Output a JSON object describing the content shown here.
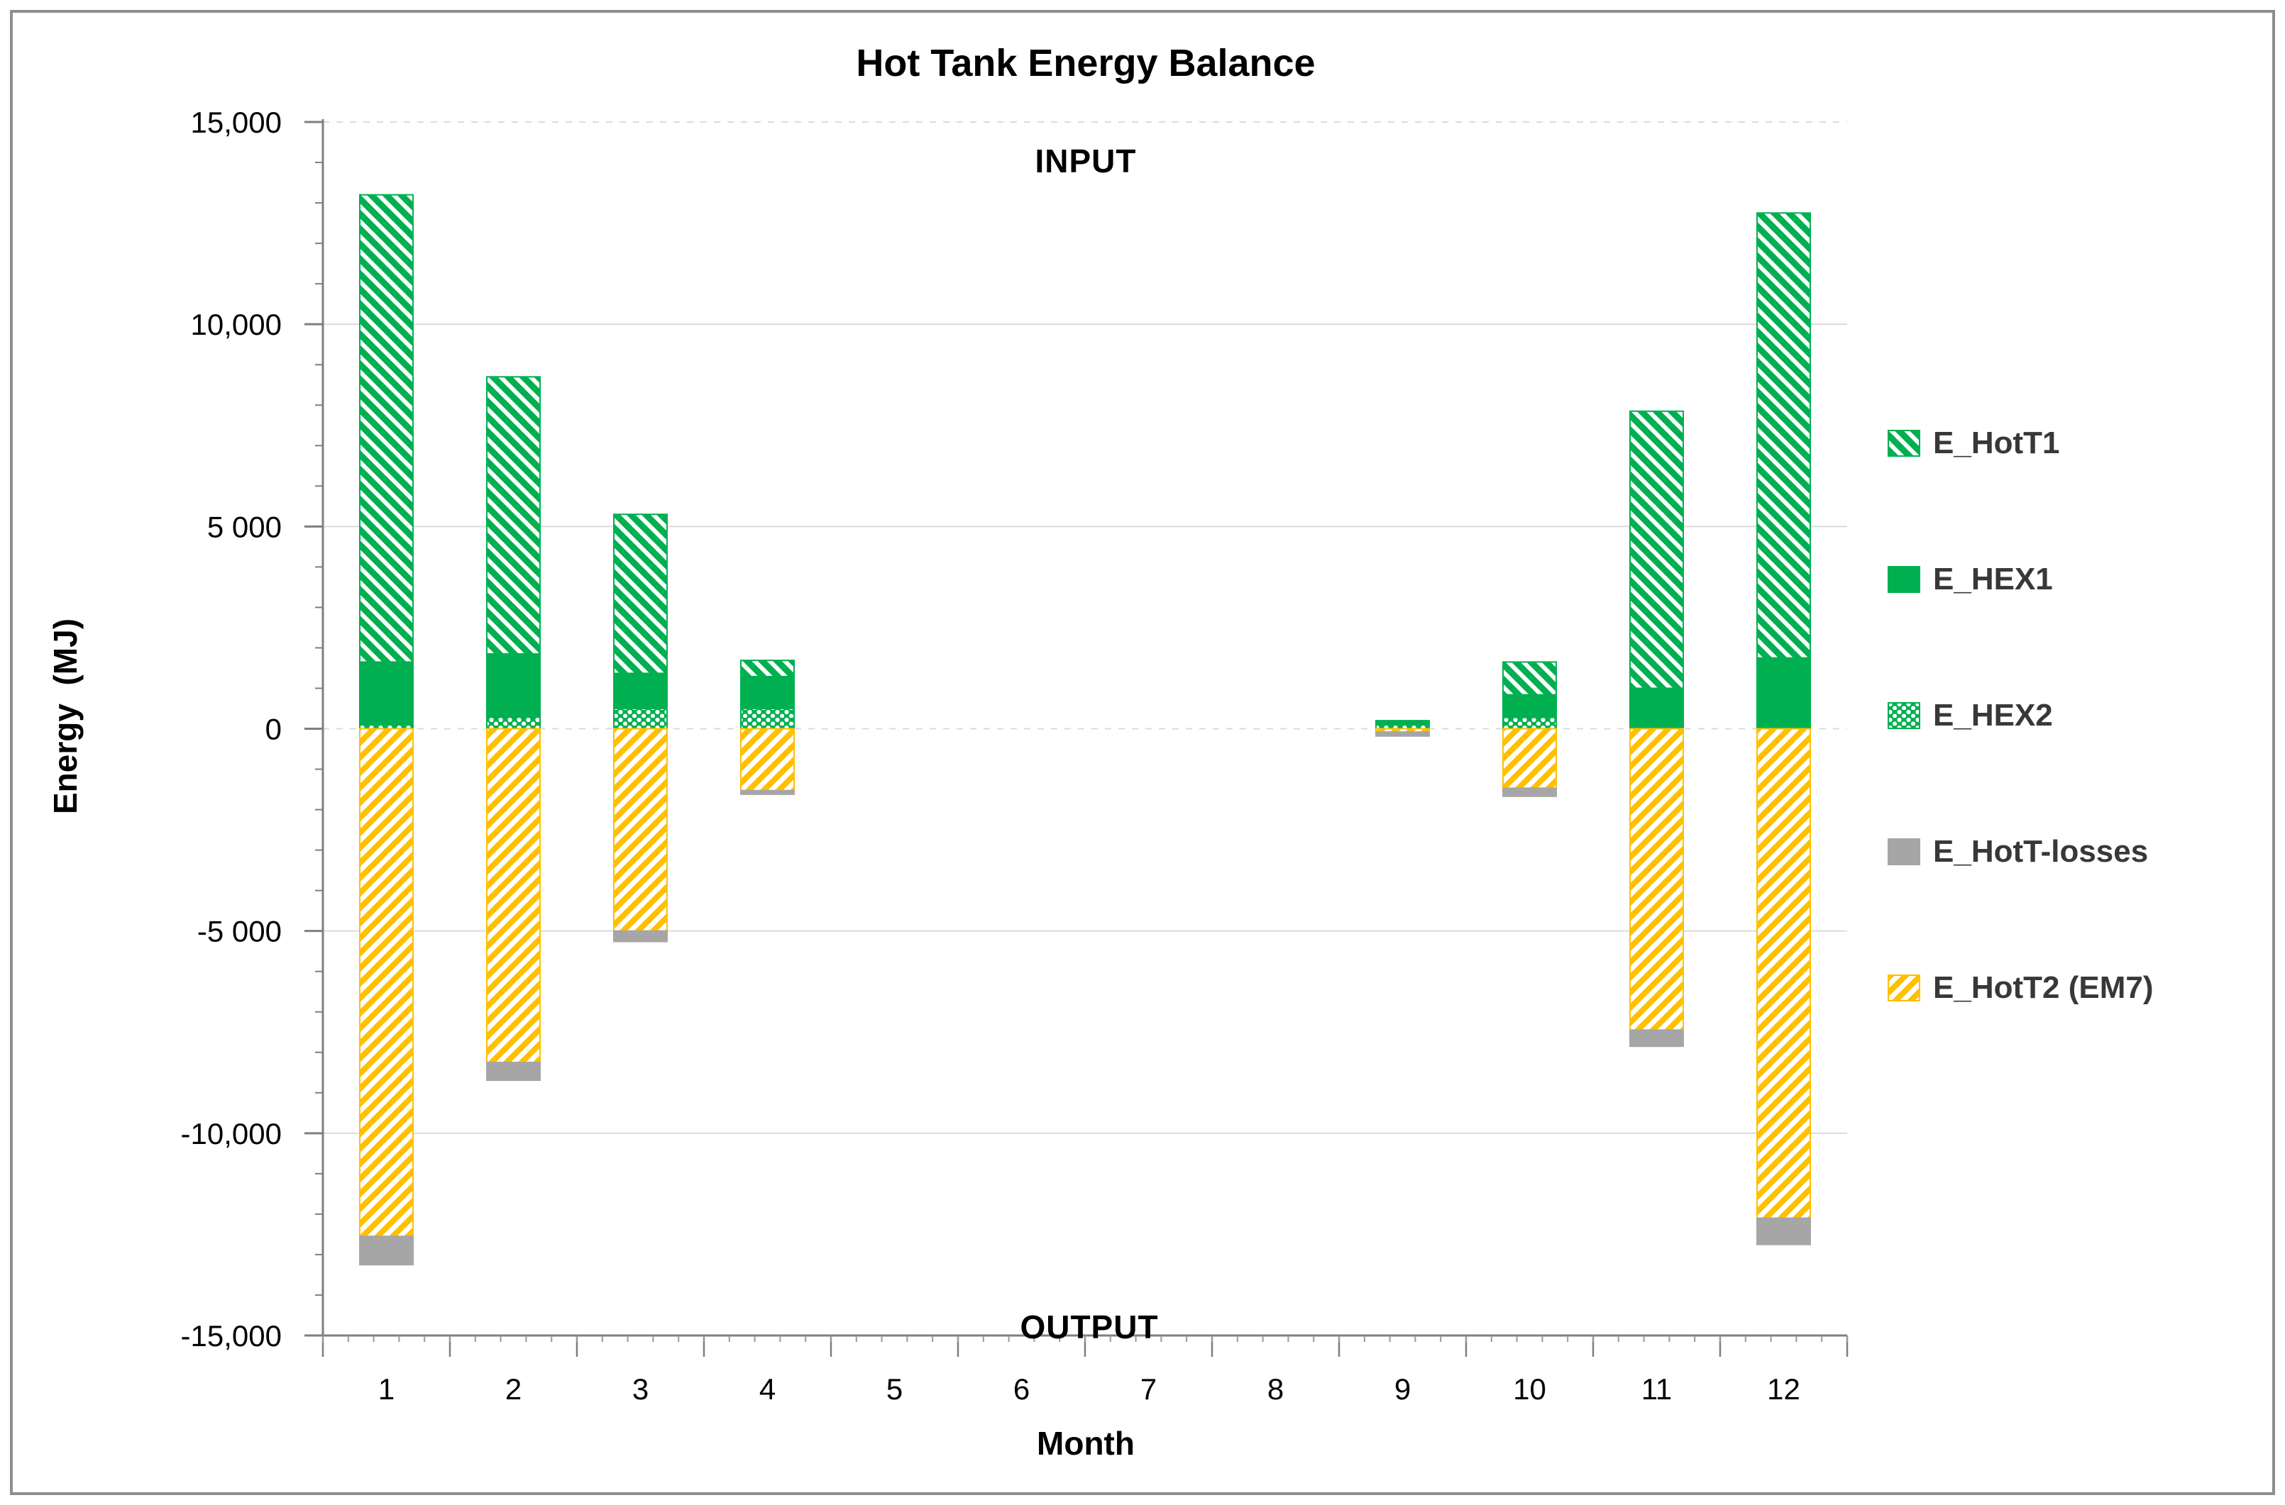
{
  "title": "Hot Tank Energy Balance",
  "annotations": {
    "input": "INPUT",
    "output": "OUTPUT"
  },
  "axes": {
    "y_label": "Energy  (MJ)",
    "x_label": "Month",
    "y_ticks": [
      {
        "value": 15000,
        "label": "15,000"
      },
      {
        "value": 10000,
        "label": "10,000"
      },
      {
        "value": 5000,
        "label": "5 000"
      },
      {
        "value": 0,
        "label": "0"
      },
      {
        "value": -5000,
        "label": "-5 000"
      },
      {
        "value": -10000,
        "label": "-10,000"
      },
      {
        "value": -15000,
        "label": "-15,000"
      }
    ],
    "x_tick_labels": [
      "1",
      "2",
      "3",
      "4",
      "5",
      "6",
      "7",
      "8",
      "9",
      "10",
      "11",
      "12"
    ]
  },
  "legend": [
    {
      "label": "E_HotT1",
      "pattern": "hatch-green"
    },
    {
      "label": "E_HEX1",
      "pattern": "solid-green"
    },
    {
      "label": "E_HEX2",
      "pattern": "dots-green"
    },
    {
      "label": "E_HotT-losses",
      "pattern": "solid-gray"
    },
    {
      "label": "E_HotT2 (EM7)",
      "pattern": "hatch-yellow"
    }
  ],
  "colors": {
    "green": "#00B050",
    "yellow": "#FFC000",
    "gray": "#A6A6A6",
    "gridline": "#DBDBDB",
    "axis": "#7F7F7F",
    "legend_text": "#383838",
    "border": "#8E8E8E"
  },
  "chart_data": {
    "type": "bar",
    "stacked": true,
    "title": "Hot Tank Energy Balance",
    "xlabel": "Month",
    "ylabel": "Energy (MJ)",
    "ylim": [
      -15000,
      15000
    ],
    "gridlines_dashed_at": [
      15000,
      0
    ],
    "legend_position": "right",
    "categories": [
      1,
      2,
      3,
      4,
      5,
      6,
      7,
      8,
      9,
      10,
      11,
      12
    ],
    "series": [
      {
        "name": "E_HotT1",
        "pattern": "hatch-green",
        "values": [
          11550,
          6850,
          3930,
          400,
          0,
          0,
          0,
          0,
          0,
          810,
          6850,
          11000
        ]
      },
      {
        "name": "E_HEX1",
        "pattern": "solid-green",
        "values": [
          1550,
          1560,
          870,
          790,
          0,
          0,
          0,
          0,
          100,
          560,
          1000,
          1750
        ]
      },
      {
        "name": "E_HEX2",
        "pattern": "dots-green",
        "values": [
          100,
          290,
          500,
          500,
          0,
          0,
          0,
          0,
          100,
          280,
          0,
          0
        ]
      },
      {
        "name": "E_HotT-losses",
        "pattern": "solid-gray",
        "values": [
          -700,
          -440,
          -260,
          -90,
          0,
          0,
          0,
          0,
          -100,
          -200,
          -400,
          -650
        ]
      },
      {
        "name": "E_HotT2 (EM7)",
        "pattern": "hatch-yellow",
        "values": [
          -12550,
          -8250,
          -5000,
          -1530,
          0,
          0,
          0,
          0,
          -80,
          -1470,
          -7450,
          -12100
        ]
      }
    ],
    "totals_positive": [
      13200,
      8700,
      5300,
      1690,
      0,
      0,
      0,
      0,
      200,
      1650,
      7850,
      12750
    ],
    "totals_negative": [
      -13250,
      -8690,
      -5260,
      -1620,
      0,
      0,
      0,
      0,
      -180,
      -1670,
      -7850,
      -12750
    ]
  }
}
